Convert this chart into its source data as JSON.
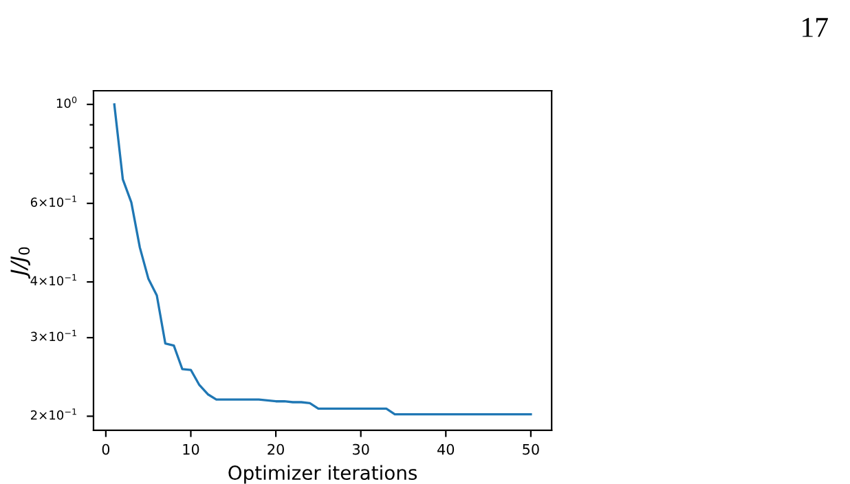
{
  "chart_data": {
    "type": "line",
    "x": [
      1,
      2,
      3,
      4,
      5,
      6,
      7,
      8,
      9,
      10,
      11,
      12,
      13,
      14,
      15,
      16,
      17,
      18,
      19,
      20,
      21,
      22,
      23,
      24,
      25,
      26,
      27,
      28,
      29,
      30,
      31,
      32,
      33,
      34,
      35,
      36,
      37,
      38,
      39,
      40,
      41,
      42,
      43,
      44,
      45,
      46,
      47,
      48,
      49,
      50
    ],
    "series": [
      {
        "color": "#1f77b4",
        "values": [
          1.0,
          0.679,
          0.603,
          0.478,
          0.407,
          0.373,
          0.291,
          0.288,
          0.255,
          0.254,
          0.235,
          0.224,
          0.218,
          0.218,
          0.218,
          0.218,
          0.218,
          0.218,
          0.217,
          0.216,
          0.216,
          0.215,
          0.215,
          0.214,
          0.208,
          0.208,
          0.208,
          0.208,
          0.208,
          0.208,
          0.208,
          0.208,
          0.208,
          0.202,
          0.202,
          0.202,
          0.202,
          0.202,
          0.202,
          0.202,
          0.202,
          0.202,
          0.202,
          0.202,
          0.202,
          0.202,
          0.202,
          0.202,
          0.202,
          0.202
        ]
      }
    ],
    "xlabel": "Optimizer iterations",
    "ylabel": "J/J$_{0}$",
    "log": "y",
    "xlim": [
      -1.45,
      52.45
    ],
    "xticks": [
      0,
      10,
      20,
      30,
      40,
      50
    ],
    "ylim": [
      0.186,
      1.073
    ],
    "yticks": [
      {
        "value": 0.2,
        "label": "2×10$^{−1}$"
      },
      {
        "value": 0.3,
        "label": "3×10$^{−1}$"
      },
      {
        "value": 0.4,
        "label": "4×10$^{−1}$"
      },
      {
        "value": 0.5,
        "label": null
      },
      {
        "value": 0.6,
        "label": "6×10$^{−1}$"
      },
      {
        "value": 0.7,
        "label": null
      },
      {
        "value": 0.8,
        "label": null
      },
      {
        "value": 0.9,
        "label": null
      },
      {
        "value": 1.0,
        "label": "10$^{0}$"
      }
    ],
    "annotations": [
      "17"
    ],
    "grid": false,
    "legend": false,
    "line_style": "solid",
    "marker": "none"
  }
}
